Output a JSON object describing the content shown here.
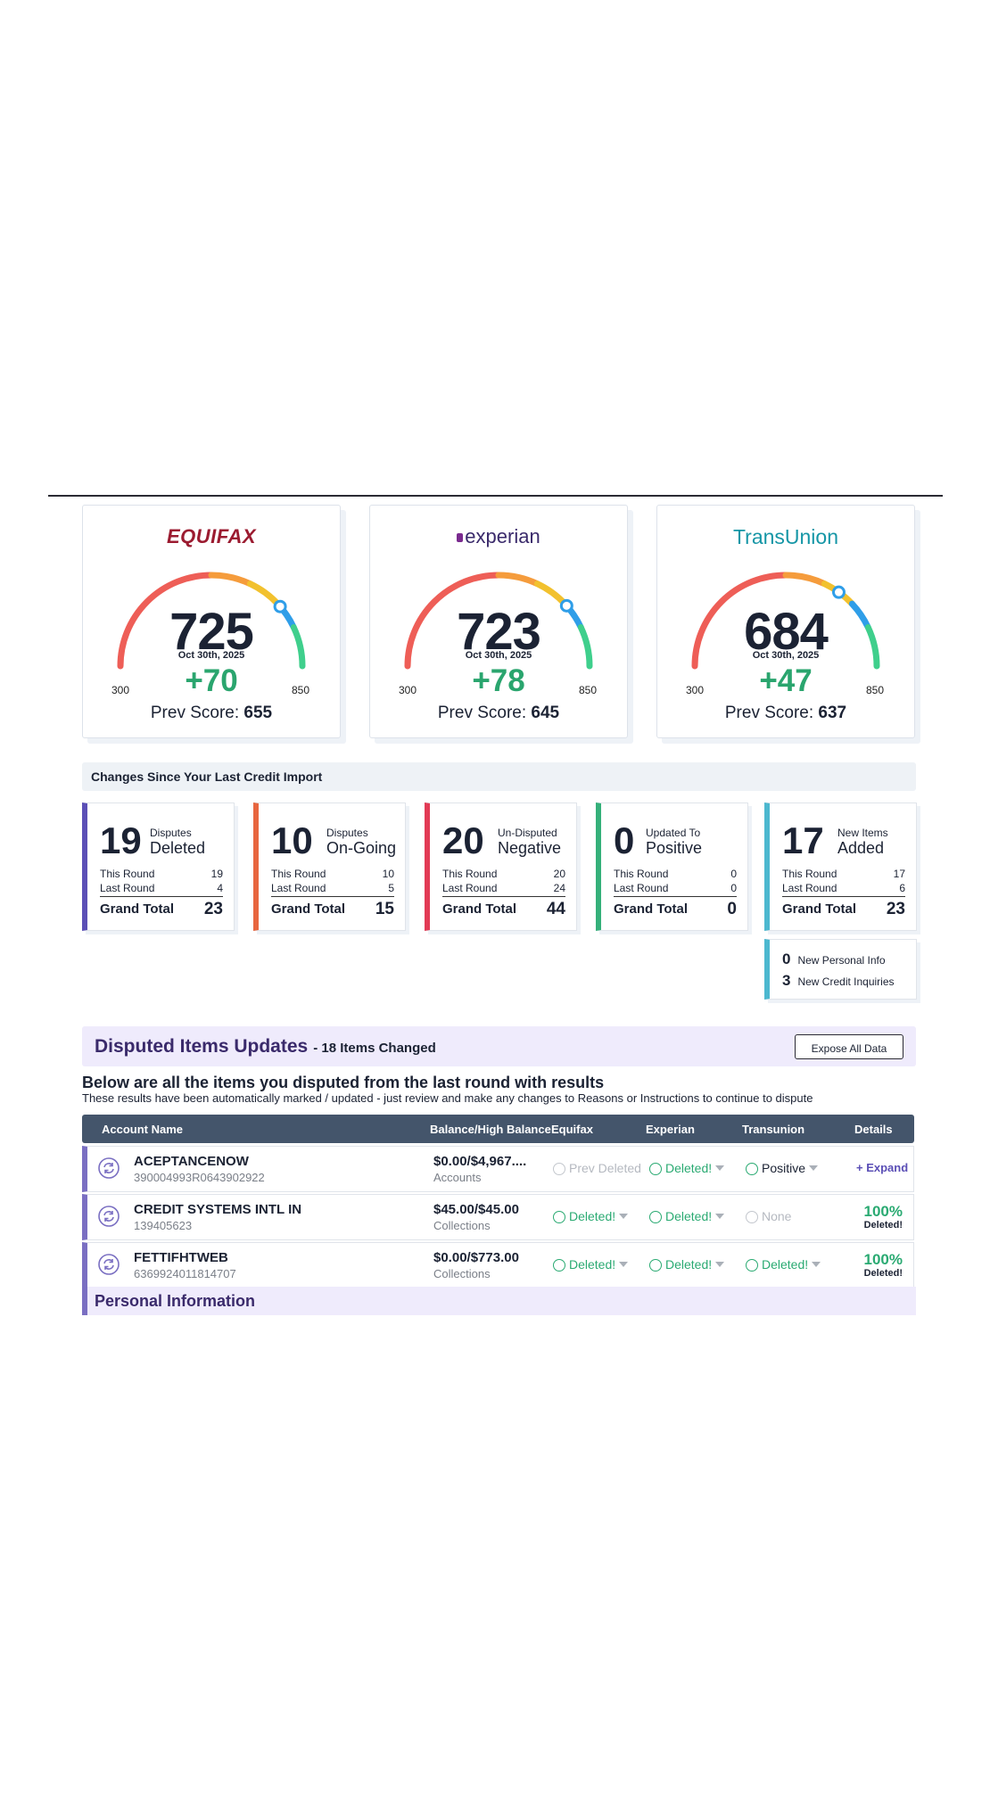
{
  "colors": {
    "accent": "#5b4fb6",
    "positive": "#2aaa72",
    "header": "#44556b",
    "section_bg": "#efebfc"
  },
  "bureaus": [
    {
      "name": "EQUIFAX",
      "score": "725",
      "date": "Oct 30th, 2025",
      "min": "300",
      "max": "850",
      "change": "+70",
      "prev_label": "Prev Score:",
      "prev": "655",
      "score_value": 725
    },
    {
      "name": "experian",
      "score": "723",
      "date": "Oct 30th, 2025",
      "min": "300",
      "max": "850",
      "change": "+78",
      "prev_label": "Prev Score:",
      "prev": "645",
      "score_value": 723
    },
    {
      "name": "TransUnion",
      "score": "684",
      "date": "Oct 30th, 2025",
      "min": "300",
      "max": "850",
      "change": "+47",
      "prev_label": "Prev Score:",
      "prev": "637",
      "score_value": 684
    }
  ],
  "changes_title": "Changes Since Your Last Credit Import",
  "stats": [
    {
      "num": "19",
      "l1": "Disputes",
      "l2": "Deleted",
      "this_label": "This Round",
      "this": "19",
      "last_label": "Last Round",
      "last": "4",
      "total_label": "Grand Total",
      "total": "23",
      "color": "#5b4fb6"
    },
    {
      "num": "10",
      "l1": "Disputes",
      "l2": "On-Going",
      "this_label": "This Round",
      "this": "10",
      "last_label": "Last Round",
      "last": "5",
      "total_label": "Grand Total",
      "total": "15",
      "color": "#e8663f"
    },
    {
      "num": "20",
      "l1": "Un-Disputed",
      "l2": "Negative",
      "this_label": "This Round",
      "this": "20",
      "last_label": "Last Round",
      "last": "24",
      "total_label": "Grand Total",
      "total": "44",
      "color": "#e23b55"
    },
    {
      "num": "0",
      "l1": "Updated To",
      "l2": "Positive",
      "this_label": "This Round",
      "this": "0",
      "last_label": "Last Round",
      "last": "0",
      "total_label": "Grand Total",
      "total": "0",
      "color": "#35b07a"
    },
    {
      "num": "17",
      "l1": "New Items",
      "l2": "Added",
      "this_label": "This Round",
      "this": "17",
      "last_label": "Last Round",
      "last": "6",
      "total_label": "Grand Total",
      "total": "23",
      "color": "#4cb8cf"
    }
  ],
  "extra": {
    "personal_count": "0",
    "personal_label": "New Personal Info",
    "inquiries_count": "3",
    "inquiries_label": "New Credit Inquiries"
  },
  "disputed": {
    "title": "Disputed Items Updates",
    "subtitle": "- 18 Items Changed",
    "expose_label": "Expose All Data",
    "heading": "Below are all the items you disputed from the last round with results",
    "note": "These results have been automatically marked / updated - just review and make any changes to Reasons or Instructions to continue to dispute",
    "columns": {
      "account": "Account Name",
      "balance": "Balance/High Balance",
      "equifax": "Equifax",
      "experian": "Experian",
      "transunion": "Transunion",
      "details": "Details"
    },
    "rows": [
      {
        "name": "ACEPTANCENOW",
        "number": "390004993R0643902922",
        "balance": "$0.00/$4,967....",
        "type": "Accounts",
        "equifax": "Prev Deleted",
        "experian": "Deleted!",
        "transunion": "Positive",
        "details": "+ Expand"
      },
      {
        "name": "CREDIT SYSTEMS INTL IN",
        "number": "139405623",
        "balance": "$45.00/$45.00",
        "type": "Collections",
        "equifax": "Deleted!",
        "experian": "Deleted!",
        "transunion": "None",
        "pct": "100%",
        "pct_label": "Deleted!"
      },
      {
        "name": "FETTIFHTWEB",
        "number": "6369924011814707",
        "balance": "$0.00/$773.00",
        "type": "Collections",
        "equifax": "Deleted!",
        "experian": "Deleted!",
        "transunion": "Deleted!",
        "pct": "100%",
        "pct_label": "Deleted!"
      }
    ]
  },
  "personal_info_title": "Personal Information"
}
